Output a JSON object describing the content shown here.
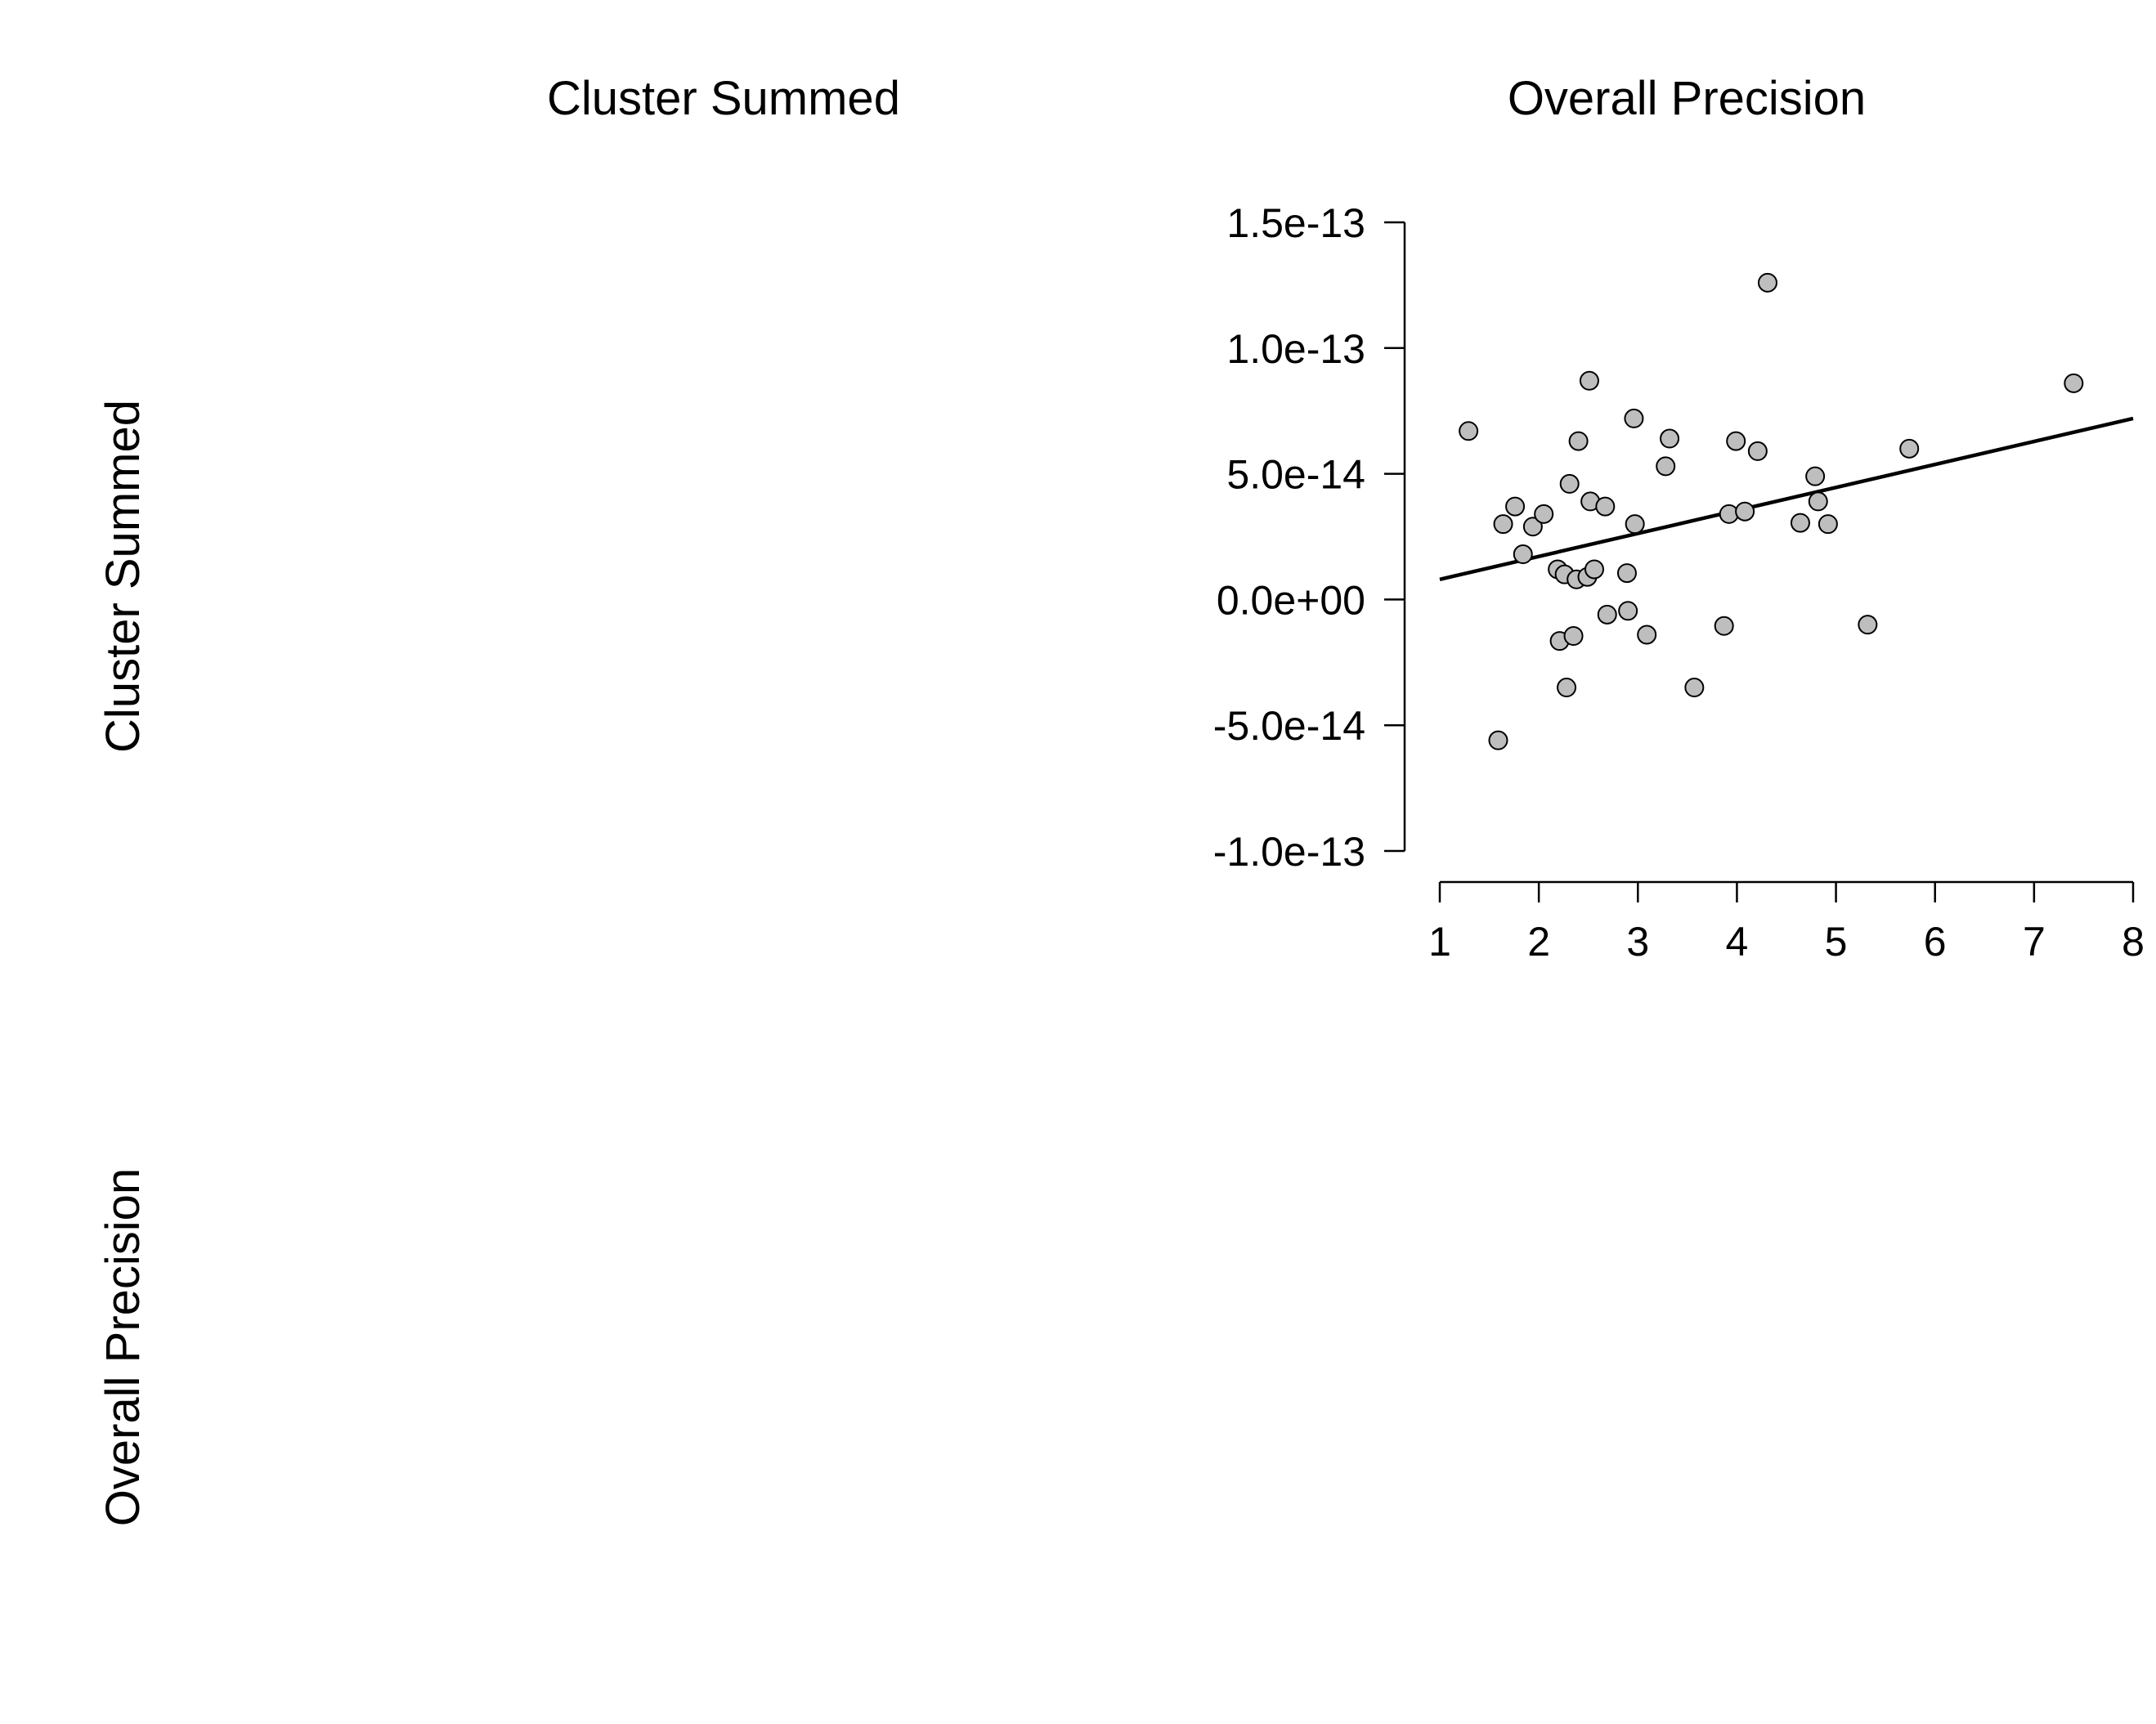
{
  "matrix": {
    "column_titles": [
      "Cluster Summed",
      "Overall Precision"
    ],
    "row_titles": [
      "Cluster Summed",
      "Overall Precision"
    ]
  },
  "chart_data": {
    "type": "scatter",
    "title": "",
    "xlabel": "",
    "ylabel": "",
    "xlim": [
      1,
      8
    ],
    "ylim": [
      -1e-13,
      1.5e-13
    ],
    "x_ticks": [
      "1",
      "2",
      "3",
      "4",
      "5",
      "6",
      "7",
      "8"
    ],
    "y_ticks": [
      "-1.0e-13",
      "-5.0e-14",
      "0.0e+00",
      "5.0e-14",
      "1.0e-13",
      "1.5e-13"
    ],
    "grid": false,
    "regression_line": {
      "x": [
        1,
        8
      ],
      "y": [
        8e-15,
        7.2e-14
      ]
    },
    "points": [
      {
        "x": 1.29,
        "y": 6.7e-14
      },
      {
        "x": 1.59,
        "y": -5.6e-14
      },
      {
        "x": 1.64,
        "y": 3e-14
      },
      {
        "x": 1.76,
        "y": 3.7e-14
      },
      {
        "x": 1.84,
        "y": 1.8e-14
      },
      {
        "x": 1.94,
        "y": 2.9e-14
      },
      {
        "x": 2.05,
        "y": 3.4e-14
      },
      {
        "x": 2.19,
        "y": 1.2e-14
      },
      {
        "x": 2.21,
        "y": -1.65e-14
      },
      {
        "x": 2.26,
        "y": 1e-14
      },
      {
        "x": 2.28,
        "y": -3.5e-14
      },
      {
        "x": 2.31,
        "y": 4.6e-14
      },
      {
        "x": 2.35,
        "y": -1.45e-14
      },
      {
        "x": 2.38,
        "y": 8e-15
      },
      {
        "x": 2.4,
        "y": 6.3e-14
      },
      {
        "x": 2.49,
        "y": 9e-15
      },
      {
        "x": 2.51,
        "y": 8.7e-14
      },
      {
        "x": 2.52,
        "y": 3.9e-14
      },
      {
        "x": 2.56,
        "y": 1.2e-14
      },
      {
        "x": 2.67,
        "y": 3.7e-14
      },
      {
        "x": 2.69,
        "y": -6e-15
      },
      {
        "x": 2.89,
        "y": 1.05e-14
      },
      {
        "x": 2.9,
        "y": -4.5e-15
      },
      {
        "x": 2.96,
        "y": 7.2e-14
      },
      {
        "x": 2.97,
        "y": 3e-14
      },
      {
        "x": 3.09,
        "y": -1.4e-14
      },
      {
        "x": 3.28,
        "y": 5.3e-14
      },
      {
        "x": 3.32,
        "y": 6.4e-14
      },
      {
        "x": 3.57,
        "y": -3.5e-14
      },
      {
        "x": 3.87,
        "y": -1.05e-14
      },
      {
        "x": 3.92,
        "y": 3.4e-14
      },
      {
        "x": 3.99,
        "y": 6.3e-14
      },
      {
        "x": 4.08,
        "y": 3.5e-14
      },
      {
        "x": 4.21,
        "y": 5.9e-14
      },
      {
        "x": 4.31,
        "y": 1.26e-13
      },
      {
        "x": 4.64,
        "y": 3.05e-14
      },
      {
        "x": 4.79,
        "y": 4.9e-14
      },
      {
        "x": 4.82,
        "y": 3.9e-14
      },
      {
        "x": 4.92,
        "y": 3e-14
      },
      {
        "x": 5.32,
        "y": -1e-14
      },
      {
        "x": 5.74,
        "y": 6e-14
      },
      {
        "x": 7.4,
        "y": 8.6e-14
      }
    ],
    "colors": {
      "marker_fill": "#bebebe",
      "marker_edge": "#000000",
      "line": "#000000"
    }
  }
}
